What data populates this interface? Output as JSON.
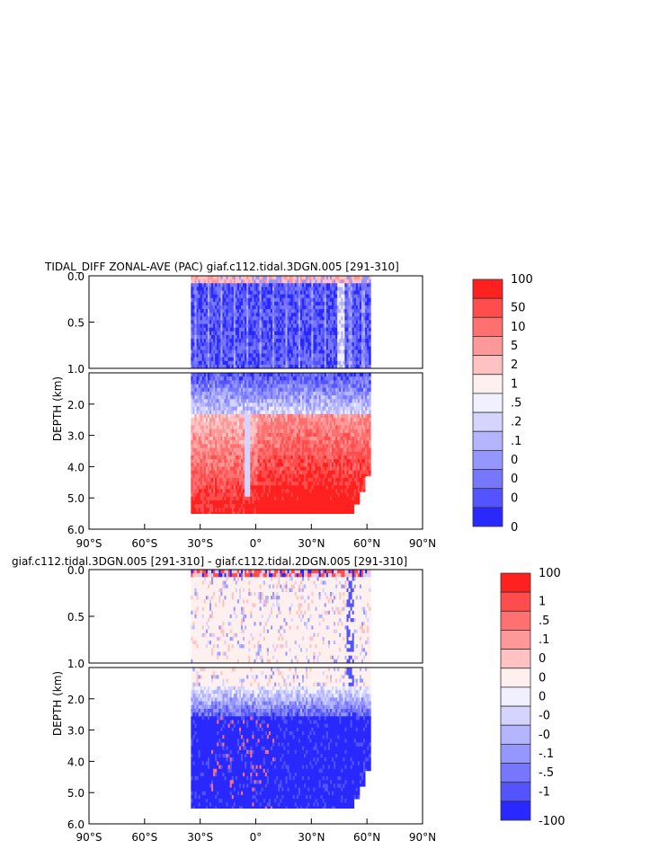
{
  "chart_data": [
    {
      "type": "heatmap",
      "title": "TIDAL_DIFF ZONAL-AVE (PAC) giaf.c112.tidal.3DGN.005 [291-310]",
      "xlabel": "",
      "ylabel": "DEPTH (km)",
      "xticks": [
        "90°S",
        "60°S",
        "30°S",
        "0°",
        "30°N",
        "60°N",
        "90°N"
      ],
      "xlim": [
        -90,
        90
      ],
      "yticks_upper": [
        "0.0",
        "0.5",
        "1.0"
      ],
      "yticks_lower": [
        "2.0",
        "3.0",
        "4.0",
        "5.0",
        "6.0"
      ],
      "ylim_upper": [
        0,
        1
      ],
      "ylim_lower": [
        1,
        6
      ],
      "data_extent_lat": [
        -35,
        62
      ],
      "colorbar": {
        "levels": [
          "100",
          "50",
          "10",
          "5",
          "2",
          "1",
          ".5",
          ".2",
          ".1",
          "0",
          "0",
          "0",
          "0"
        ],
        "colors": [
          "#ff2020",
          "#ff4c4c",
          "#ff7070",
          "#ff9898",
          "#ffc2c2",
          "#fff0f0",
          "#f0f0ff",
          "#d4d4ff",
          "#b4b4ff",
          "#9696ff",
          "#7676ff",
          "#5454ff",
          "#2828ff"
        ]
      }
    },
    {
      "type": "heatmap",
      "title": "giaf.c112.tidal.3DGN.005 [291-310] - giaf.c112.tidal.2DGN.005 [291-310]",
      "xlabel": "",
      "ylabel": "DEPTH (km)",
      "xticks": [
        "90°S",
        "60°S",
        "30°S",
        "0°",
        "30°N",
        "60°N",
        "90°N"
      ],
      "xlim": [
        -90,
        90
      ],
      "yticks_upper": [
        "0.0",
        "0.5",
        "1.0"
      ],
      "yticks_lower": [
        "2.0",
        "3.0",
        "4.0",
        "5.0",
        "6.0"
      ],
      "ylim_upper": [
        0,
        1
      ],
      "ylim_lower": [
        1,
        6
      ],
      "data_extent_lat": [
        -35,
        62
      ],
      "colorbar": {
        "levels": [
          "100",
          "1",
          ".5",
          ".1",
          "0",
          "0",
          "0",
          "-0",
          "-0",
          "-.1",
          "-.5",
          "-1",
          "-100"
        ],
        "colors": [
          "#ff2020",
          "#ff4c4c",
          "#ff7070",
          "#ff9898",
          "#ffc2c2",
          "#fff0f0",
          "#f0f0ff",
          "#d4d4ff",
          "#b4b4ff",
          "#9696ff",
          "#7676ff",
          "#5454ff",
          "#2828ff"
        ]
      }
    }
  ]
}
